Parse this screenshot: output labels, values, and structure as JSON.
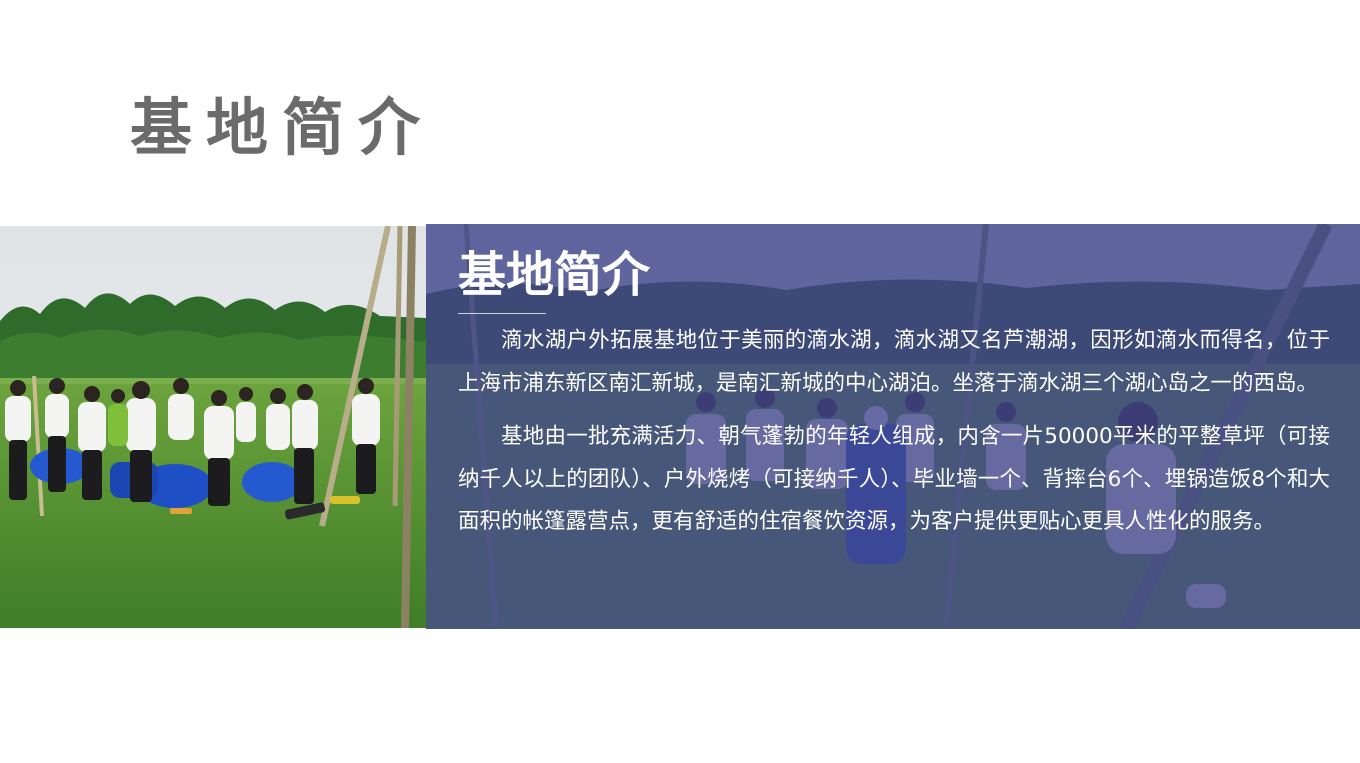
{
  "page": {
    "title": "基地简介"
  },
  "panel": {
    "heading": "基地简介",
    "paragraphs": [
      "滴水湖户外拓展基地位于美丽的滴水湖，滴水湖又名芦潮湖，因形如滴水而得名，位于上海市浦东新区南汇新城，是南汇新城的中心湖泊。坐落于滴水湖三个湖心岛之一的西岛。",
      "基地由一批充满活力、朝气蓬勃的年轻人组成，内含一片50000平米的平整草坪（可接纳千人以上的团队）、户外烧烤（可接纳千人）、毕业墙一个、背摔台6个、埋锅造饭8个和大面积的帐篷露营点，更有舒适的住宿餐饮资源，为客户提供更贴心更具人性化的服务。"
    ]
  },
  "colors": {
    "title_gray": "#6b6b6b",
    "overlay_blue": "#40448c",
    "grass_green": "#4f8f2f",
    "barrel_blue": "#1f4fc4"
  },
  "images": {
    "left_photo": "team-building-group-on-lawn-photo",
    "right_photo": "team-building-background-photo"
  }
}
